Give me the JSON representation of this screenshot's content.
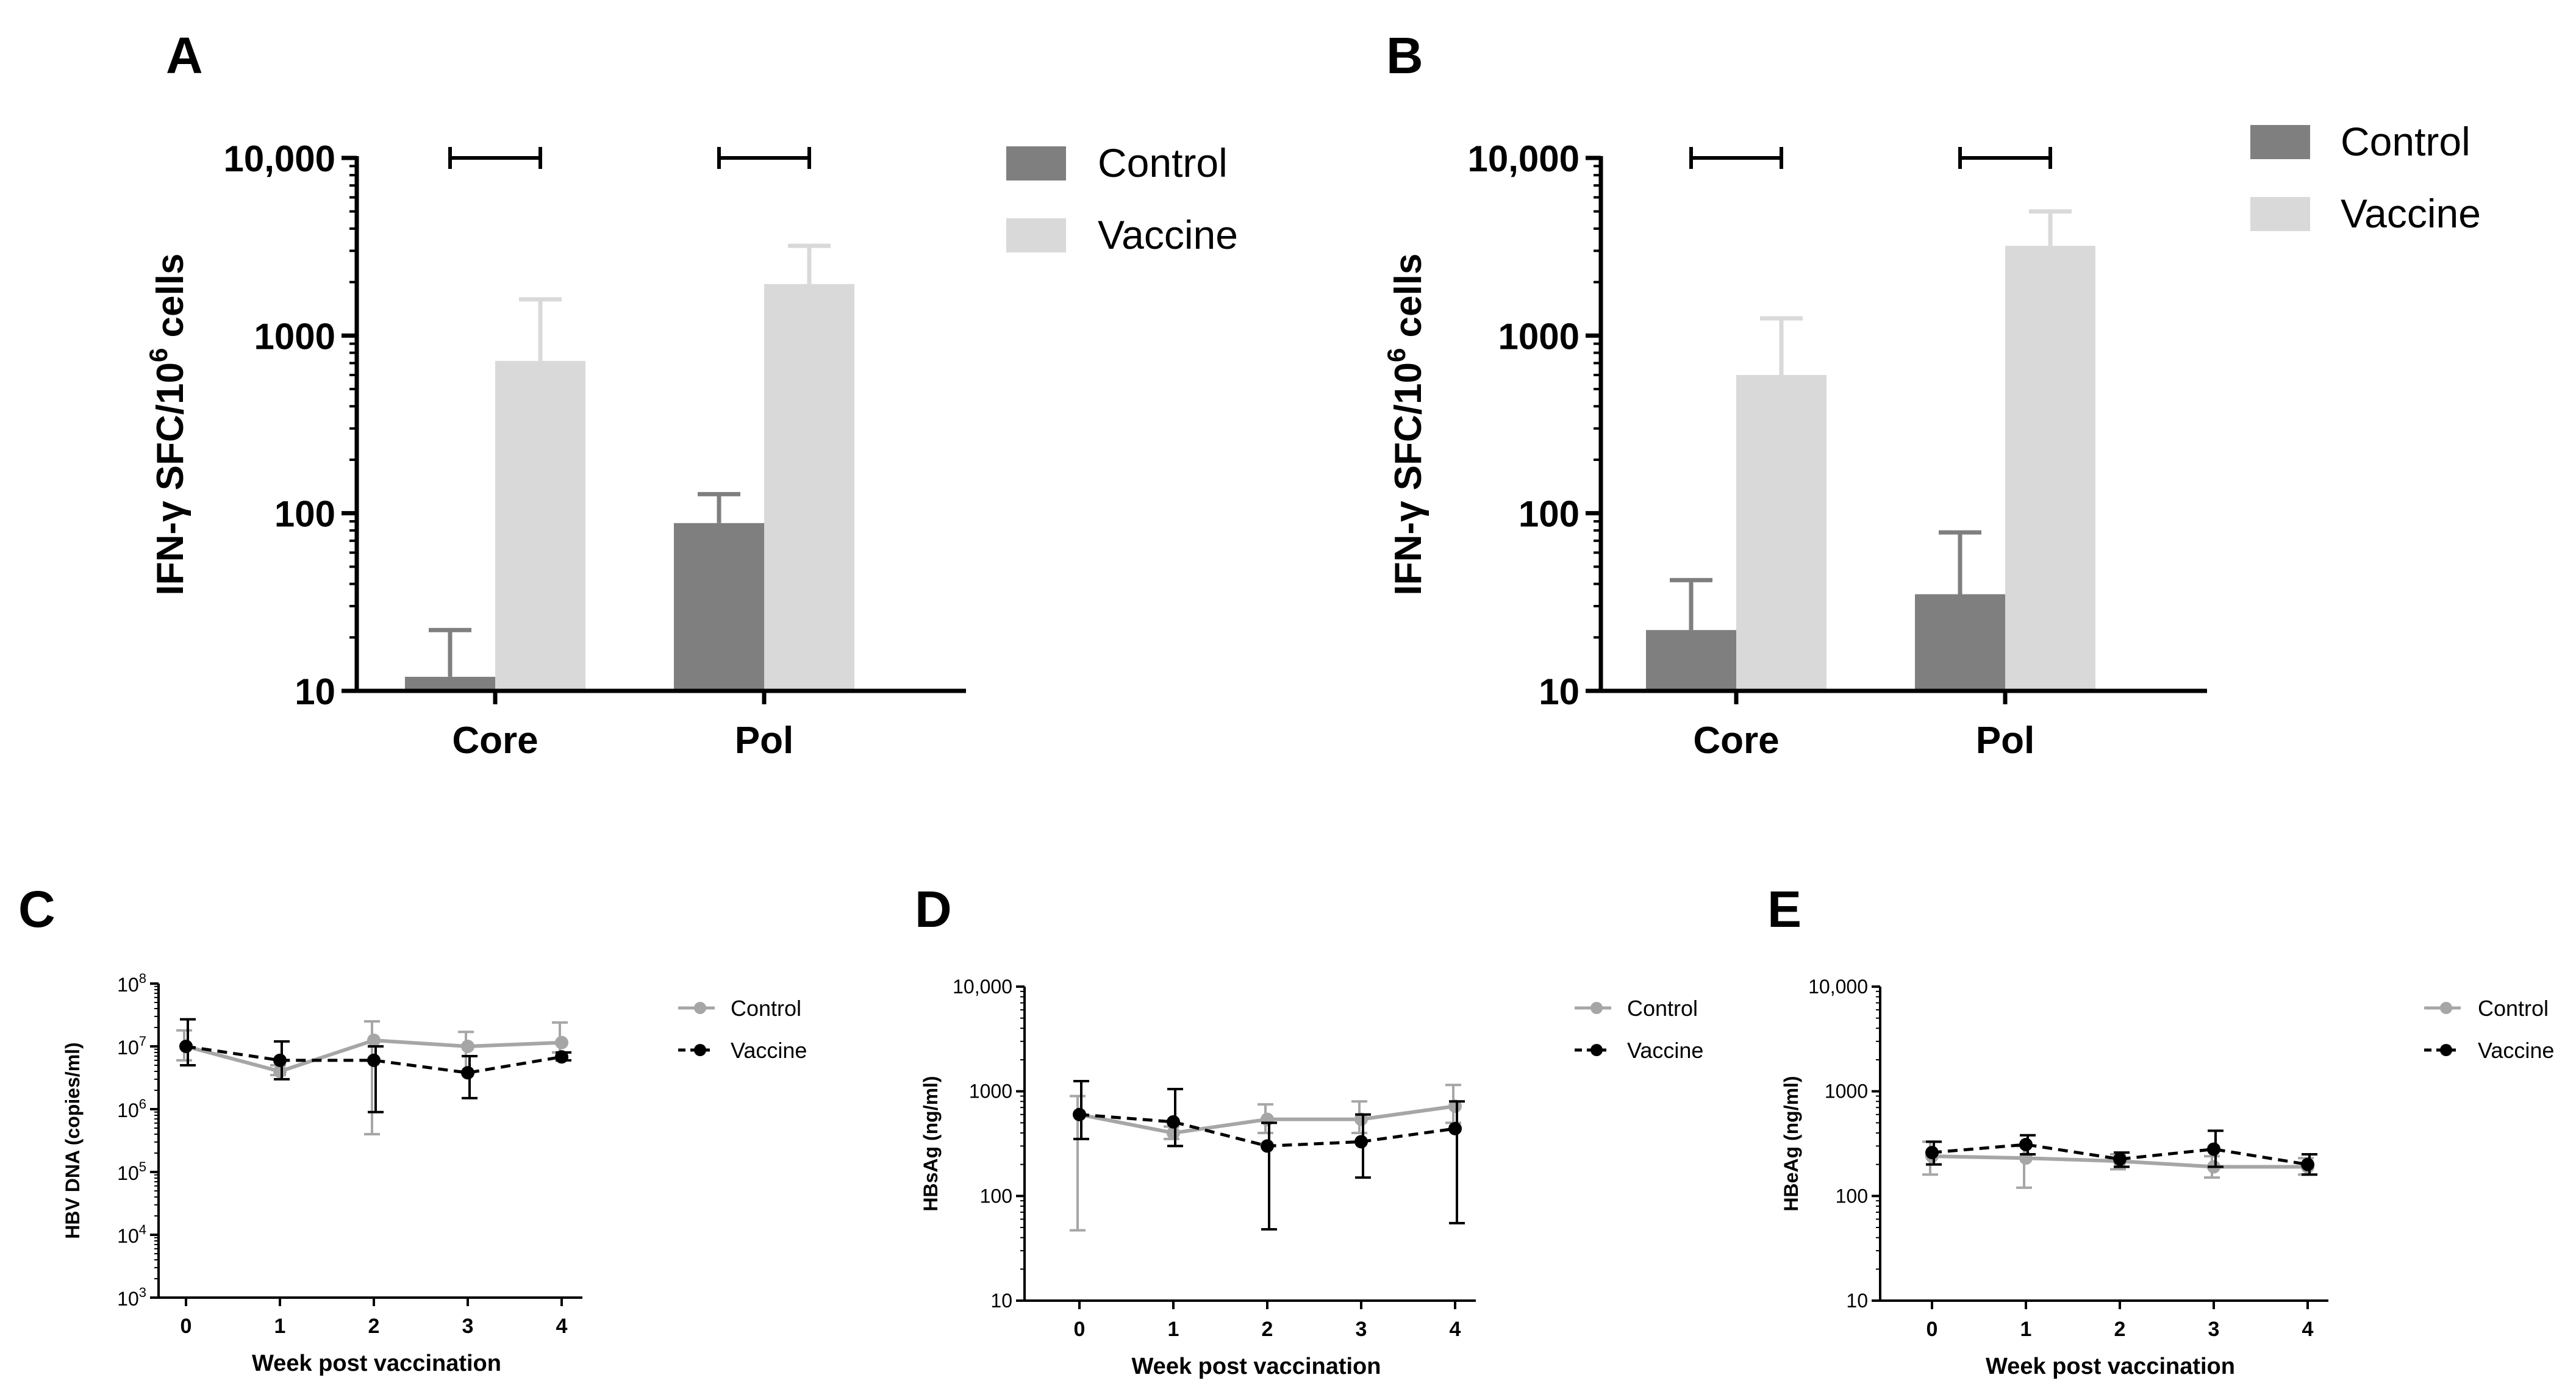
{
  "colors": {
    "control_bar": "#7f7f7f",
    "vaccine_bar": "#d9d9d9",
    "control_line": "#a6a6a6",
    "vaccine_line": "#000000",
    "axis": "#000000"
  },
  "chart_data": [
    {
      "panel": "A",
      "type": "bar",
      "scale": "log10",
      "categories": [
        "Core",
        "Pol"
      ],
      "ylabel": "IFN-γ SFC/10^6 cells",
      "ylabel_parts": {
        "pre": "IFN-γ SFC/10",
        "sup": "6",
        "post": " cells"
      },
      "ylim": [
        10,
        10000
      ],
      "yticks": [
        10,
        100,
        1000,
        10000
      ],
      "ytick_labels": [
        "10",
        "100",
        "1000",
        "10,000"
      ],
      "legend": [
        "Control",
        "Vaccine"
      ],
      "legend_position": "top-right",
      "series": [
        {
          "name": "Control",
          "values": [
            12,
            88
          ],
          "err_upper": [
            22,
            128
          ]
        },
        {
          "name": "Vaccine",
          "values": [
            720,
            1950
          ],
          "err_upper": [
            1600,
            3200
          ]
        }
      ],
      "significance_brackets": [
        {
          "category": "Core",
          "level": 10000
        },
        {
          "category": "Pol",
          "level": 10000
        }
      ]
    },
    {
      "panel": "B",
      "type": "bar",
      "scale": "log10",
      "categories": [
        "Core",
        "Pol"
      ],
      "ylabel": "IFN-γ SFC/10^6 cells",
      "ylabel_parts": {
        "pre": "IFN-γ SFC/10",
        "sup": "6",
        "post": " cells"
      },
      "ylim": [
        10,
        10000
      ],
      "yticks": [
        10,
        100,
        1000,
        10000
      ],
      "ytick_labels": [
        "10",
        "100",
        "1000",
        "10,000"
      ],
      "legend": [
        "Control",
        "Vaccine"
      ],
      "legend_position": "top-right",
      "series": [
        {
          "name": "Control",
          "values": [
            22,
            35
          ],
          "err_upper": [
            42,
            78
          ]
        },
        {
          "name": "Vaccine",
          "values": [
            600,
            3200
          ],
          "err_upper": [
            1250,
            5000
          ]
        }
      ],
      "significance_brackets": [
        {
          "category": "Core",
          "level": 10000
        },
        {
          "category": "Pol",
          "level": 10000
        }
      ]
    },
    {
      "panel": "C",
      "type": "line",
      "scale": "log10",
      "x": [
        0,
        1,
        2,
        3,
        4
      ],
      "xlabel": "Week post vaccination",
      "ylabel": "HBV DNA (copies/ml)",
      "ylim": [
        1000,
        100000000
      ],
      "yticks": [
        1000,
        10000,
        100000,
        1000000,
        10000000,
        100000000
      ],
      "ytick_labels": [
        {
          "base": "10",
          "exp": "3"
        },
        {
          "base": "10",
          "exp": "4"
        },
        {
          "base": "10",
          "exp": "5"
        },
        {
          "base": "10",
          "exp": "6"
        },
        {
          "base": "10",
          "exp": "7"
        },
        {
          "base": "10",
          "exp": "8"
        }
      ],
      "legend": [
        "Control",
        "Vaccine"
      ],
      "legend_position": "top-right",
      "series": [
        {
          "name": "Control",
          "values": [
            10000000,
            4000000,
            12500000,
            10000000,
            11500000
          ],
          "err_low": [
            6000000,
            3500000,
            400000,
            4000000,
            8000000
          ],
          "err_high": [
            18000000,
            5000000,
            25000000,
            17000000,
            24000000
          ]
        },
        {
          "name": "Vaccine",
          "values": [
            10000000,
            6000000,
            6000000,
            3800000,
            6800000
          ],
          "err_low": [
            5000000,
            3000000,
            900000,
            1500000,
            6000000
          ],
          "err_high": [
            27000000,
            12000000,
            10000000,
            7000000,
            8000000
          ]
        }
      ]
    },
    {
      "panel": "D",
      "type": "line",
      "scale": "log10",
      "x": [
        0,
        1,
        2,
        3,
        4
      ],
      "xlabel": "Week post vaccination",
      "ylabel": "HBsAg (ng/ml)",
      "ylim": [
        10,
        10000
      ],
      "yticks": [
        10,
        100,
        1000,
        10000
      ],
      "ytick_labels": [
        "10",
        "100",
        "1000",
        "10,000"
      ],
      "legend": [
        "Control",
        "Vaccine"
      ],
      "legend_position": "top-right",
      "series": [
        {
          "name": "Control",
          "values": [
            600,
            400,
            540,
            540,
            720
          ],
          "err_low": [
            47,
            350,
            400,
            400,
            500
          ],
          "err_high": [
            900,
            460,
            750,
            800,
            1150
          ]
        },
        {
          "name": "Vaccine",
          "values": [
            600,
            510,
            300,
            330,
            440
          ],
          "err_low": [
            350,
            300,
            48,
            150,
            55
          ],
          "err_high": [
            1250,
            1050,
            500,
            600,
            800
          ]
        }
      ]
    },
    {
      "panel": "E",
      "type": "line",
      "scale": "log10",
      "x": [
        0,
        1,
        2,
        3,
        4
      ],
      "xlabel": "Week post vaccination",
      "ylabel": "HBeAg (ng/ml)",
      "ylim": [
        10,
        10000
      ],
      "yticks": [
        10,
        100,
        1000,
        10000
      ],
      "ytick_labels": [
        "10",
        "100",
        "1000",
        "10,000"
      ],
      "legend": [
        "Control",
        "Vaccine"
      ],
      "legend_position": "top-right",
      "series": [
        {
          "name": "Control",
          "values": [
            240,
            230,
            215,
            190,
            190
          ],
          "err_low": [
            160,
            120,
            180,
            150,
            160
          ],
          "err_high": [
            330,
            300,
            250,
            240,
            230
          ]
        },
        {
          "name": "Vaccine",
          "values": [
            260,
            310,
            225,
            280,
            200
          ],
          "err_low": [
            200,
            250,
            190,
            190,
            160
          ],
          "err_high": [
            330,
            380,
            260,
            420,
            250
          ]
        }
      ]
    }
  ]
}
